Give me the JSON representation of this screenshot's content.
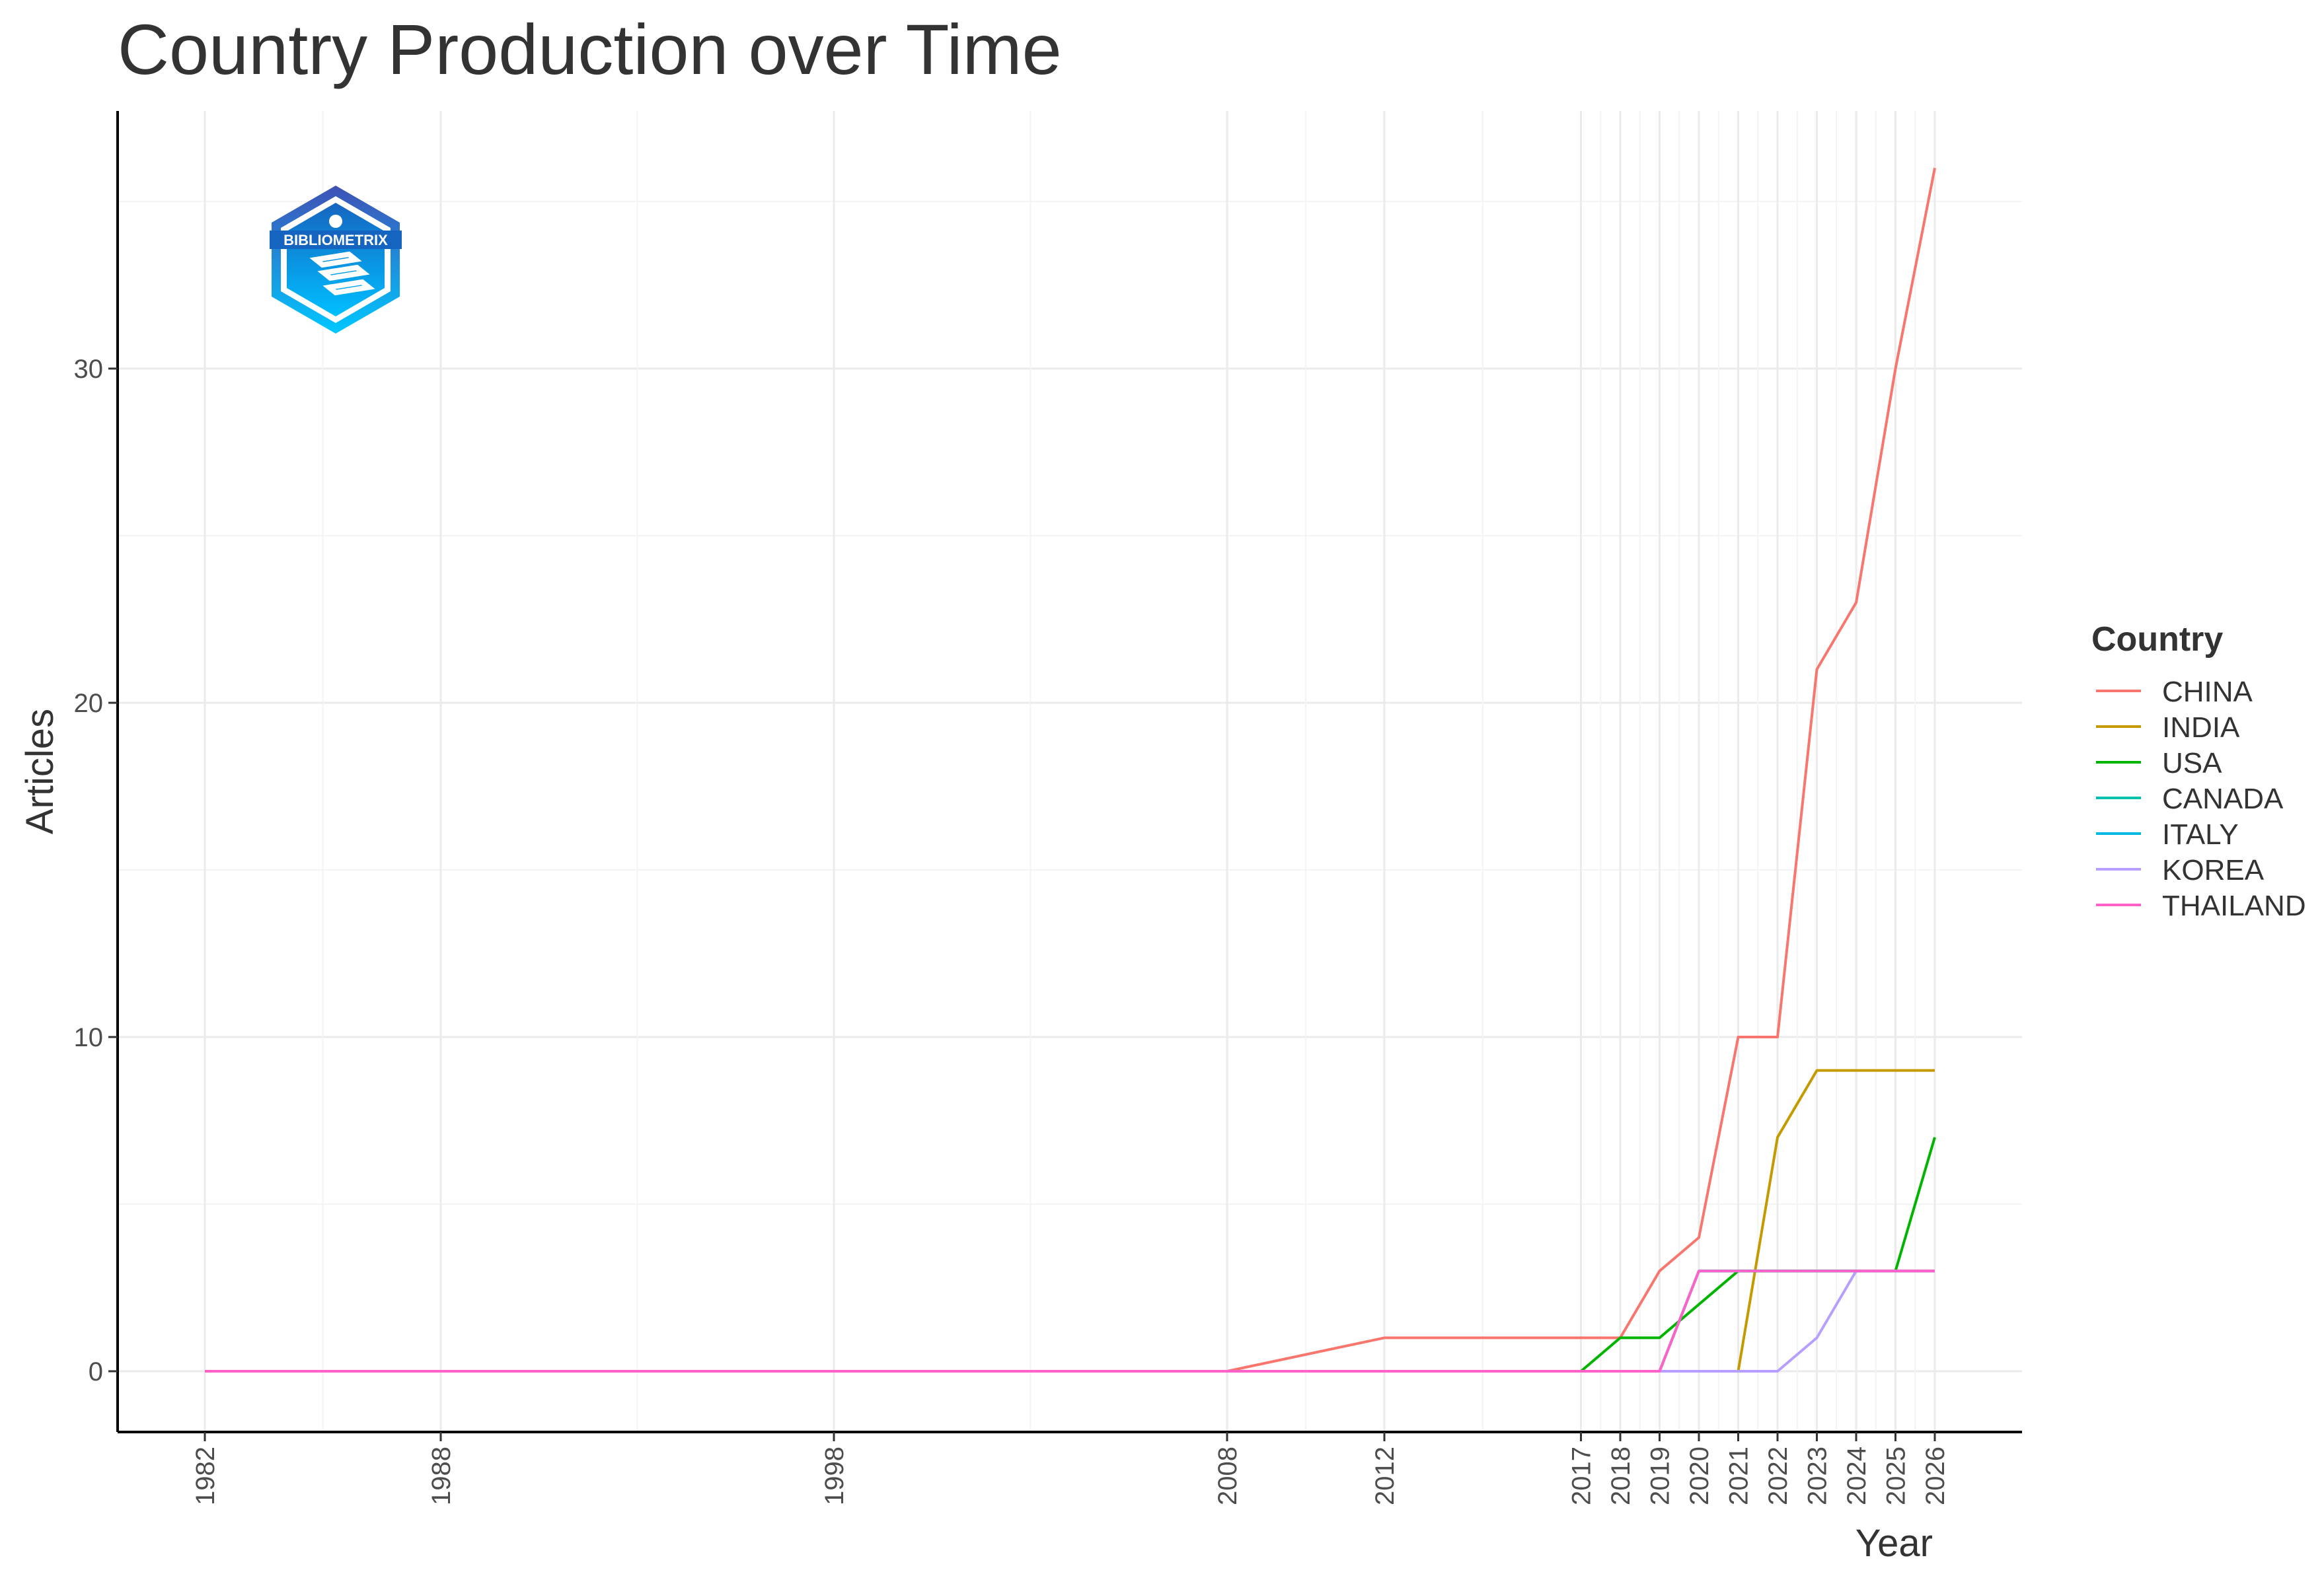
{
  "chart_data": {
    "type": "line",
    "title": "Country Production over Time",
    "xlabel": "Year",
    "ylabel": "Articles",
    "x": [
      1982,
      2008,
      2012,
      2017,
      2018,
      2019,
      2020,
      2021,
      2022,
      2023,
      2024,
      2025,
      2026
    ],
    "x_ticks": [
      1982,
      1988,
      1998,
      2008,
      2012,
      2017,
      2018,
      2019,
      2020,
      2021,
      2022,
      2023,
      2024,
      2025,
      2026
    ],
    "y_ticks": [
      0,
      10,
      20,
      30
    ],
    "xlim": [
      1982,
      2026
    ],
    "ylim": [
      0,
      36
    ],
    "grid": true,
    "legend_title": "Country",
    "legend_position": "right",
    "series": [
      {
        "name": "CHINA",
        "color": "#F8766D",
        "values": [
          0,
          0,
          1,
          1,
          1,
          3,
          4,
          10,
          10,
          21,
          23,
          30,
          36
        ]
      },
      {
        "name": "INDIA",
        "color": "#C49A00",
        "values": [
          0,
          0,
          0,
          0,
          0,
          0,
          0,
          0,
          7,
          9,
          9,
          9,
          9
        ]
      },
      {
        "name": "USA",
        "color": "#00B400",
        "values": [
          0,
          0,
          0,
          0,
          1,
          1,
          2,
          3,
          3,
          3,
          3,
          3,
          7
        ]
      },
      {
        "name": "CANADA",
        "color": "#00C0AF",
        "values": [
          0,
          0,
          0,
          0,
          0,
          0,
          3,
          3,
          3,
          3,
          3,
          3,
          3
        ]
      },
      {
        "name": "ITALY",
        "color": "#00B9E3",
        "values": [
          0,
          0,
          0,
          0,
          0,
          0,
          3,
          3,
          3,
          3,
          3,
          3,
          3
        ]
      },
      {
        "name": "KOREA",
        "color": "#B79FFF",
        "values": [
          0,
          0,
          0,
          0,
          0,
          0,
          0,
          0,
          0,
          1,
          3,
          3,
          3
        ]
      },
      {
        "name": "THAILAND",
        "color": "#FF61C9",
        "values": [
          0,
          0,
          0,
          0,
          0,
          0,
          3,
          3,
          3,
          3,
          3,
          3,
          3
        ]
      }
    ]
  },
  "logo": {
    "text": "BIBLIOMETRIX",
    "icon": "bibliometrix-hexagon-logo",
    "color": "#1E88E5"
  }
}
